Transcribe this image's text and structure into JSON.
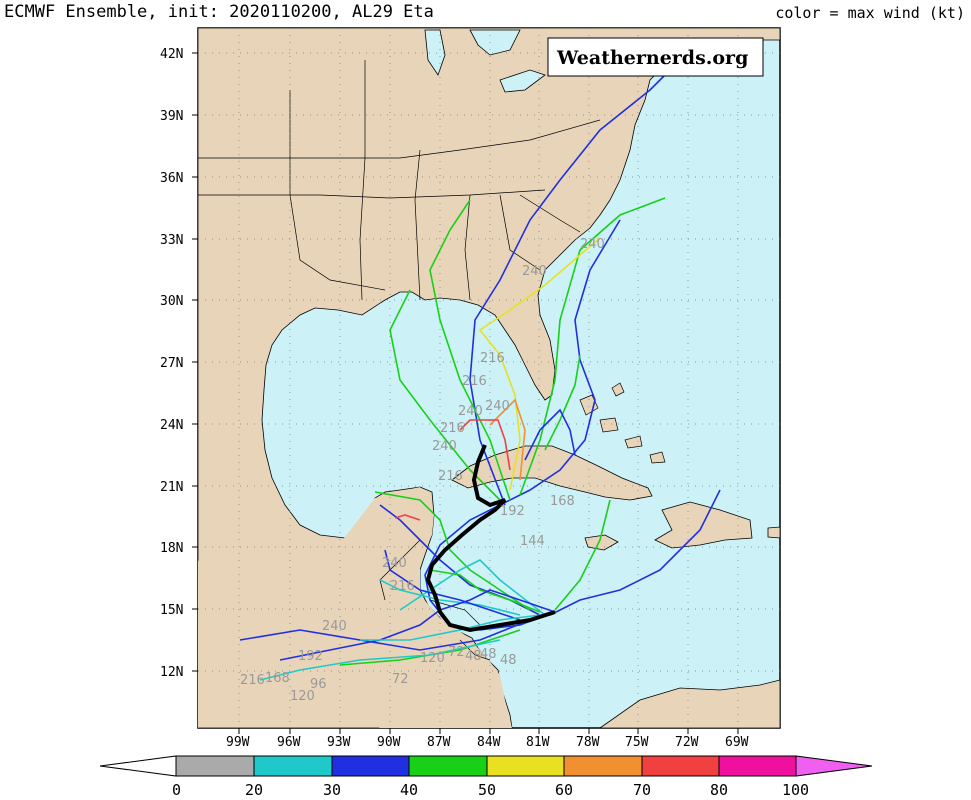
{
  "header": {
    "title": "ECMWF Ensemble, init: 2020110200, AL29 Eta",
    "subtitle": "color = max wind (kt)"
  },
  "watermark": "Weathernerds.org",
  "map": {
    "lon_range": [
      -102,
      -64
    ],
    "lat_range": [
      9.3,
      43.5
    ],
    "lat_ticks": [
      "42N",
      "39N",
      "36N",
      "33N",
      "30N",
      "27N",
      "24N",
      "21N",
      "18N",
      "15N",
      "12N"
    ],
    "lon_ticks": [
      "99W",
      "96W",
      "93W",
      "90W",
      "87W",
      "84W",
      "81W",
      "78W",
      "75W",
      "72W",
      "69W"
    ],
    "land_color": "#e8d5b9",
    "ocean_color": "#ccf2f7",
    "hour_labels": [
      "240",
      "240",
      "240",
      "216",
      "216",
      "240",
      "216",
      "216",
      "240",
      "216",
      "192",
      "168",
      "144",
      "120",
      "96",
      "72",
      "48",
      "240",
      "216",
      "168",
      "192",
      "120",
      "72",
      "48",
      "48",
      "240"
    ]
  },
  "colorbar": {
    "ticks": [
      "0",
      "20",
      "30",
      "40",
      "50",
      "60",
      "70",
      "80",
      "100"
    ],
    "colors": [
      "#aaaaaa",
      "#20c9c9",
      "#2030e0",
      "#18d018",
      "#e8e020",
      "#f09030",
      "#f04040",
      "#f010a0"
    ],
    "end_low": "#ffffff",
    "end_high": "#f060f0"
  }
}
